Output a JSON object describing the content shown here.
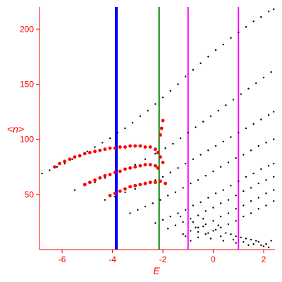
{
  "chart_data": {
    "type": "scatter",
    "title": "",
    "xlabel": "E",
    "ylabel": "<n>",
    "xlim": [
      -6.9,
      2.45
    ],
    "ylim": [
      0,
      220
    ],
    "x_ticks": [
      -6,
      -4,
      -2,
      0,
      2
    ],
    "x_tick_labels": [
      "-6",
      "-4",
      "-2",
      "0",
      "2"
    ],
    "y_ticks": [
      50,
      100,
      150,
      200
    ],
    "y_tick_labels": [
      "50",
      "100",
      "150",
      "200"
    ],
    "grid": false,
    "colors": {
      "axes": "#ff0000",
      "points": "#000000",
      "highlight_points": "#ff0000",
      "line_blue": "#0000ff",
      "line_green": "#008000",
      "line_magenta": "#ff00ff"
    },
    "vertical_lines": [
      {
        "x": -3.85,
        "color": "#0000ff"
      },
      {
        "x": -2.15,
        "color": "#008000"
      },
      {
        "x": -1.0,
        "color": "#ff00ff"
      },
      {
        "x": 1.0,
        "color": "#ff00ff"
      }
    ],
    "series": [
      {
        "color": "#000000",
        "x": [
          -6.8,
          -6.5,
          -6.2,
          -5.9,
          -5.6,
          -5.3,
          -5.0,
          -4.7,
          -4.4,
          -4.1,
          -3.8,
          -3.5,
          -3.2,
          -2.9,
          -2.6,
          -2.3,
          -2.0,
          -1.7,
          -1.4,
          -1.1,
          -0.8,
          -0.5,
          -0.2,
          0.1,
          0.4,
          0.7,
          1.0,
          1.3,
          1.6,
          1.9,
          2.2,
          2.4,
          -5.5,
          -5.1,
          -4.7,
          -4.3,
          -3.9,
          -3.5,
          -3.1,
          -2.7,
          -2.3,
          -1.9,
          -1.6,
          -1.3,
          -1.0,
          -0.7,
          -0.4,
          -0.1,
          0.2,
          0.5,
          0.8,
          1.1,
          1.4,
          1.7,
          2.0,
          2.3,
          -4.3,
          -3.9,
          -3.5,
          -3.1,
          -2.7,
          -2.3,
          -2.0,
          -1.7,
          -1.4,
          -1.1,
          -0.8,
          -0.5,
          -0.2,
          0.1,
          0.4,
          0.7,
          1.0,
          1.3,
          1.6,
          1.9,
          2.2,
          2.4,
          -3.3,
          -3.0,
          -2.7,
          -2.4,
          -2.1,
          -1.8,
          -1.5,
          -1.2,
          -0.9,
          -0.6,
          -0.3,
          0.0,
          0.3,
          0.6,
          0.9,
          1.2,
          1.5,
          1.8,
          2.1,
          2.4,
          -2.3,
          -2.0,
          -1.7,
          -1.4,
          -1.1,
          -0.8,
          -0.5,
          -0.2,
          0.1,
          0.4,
          0.7,
          1.0,
          1.3,
          1.6,
          1.9,
          2.2,
          2.4,
          -1.8,
          -1.5,
          -1.2,
          -0.9,
          -0.6,
          -0.3,
          0.0,
          0.3,
          0.6,
          0.9,
          1.2,
          1.5,
          1.8,
          2.1,
          2.4,
          -1.2,
          -0.9,
          -0.6,
          -0.3,
          0.0,
          0.3,
          0.6,
          0.9,
          1.2,
          1.5,
          1.8,
          2.1,
          2.4,
          -0.9,
          -0.6,
          -0.3,
          0.0,
          0.3,
          0.6,
          0.9,
          1.2,
          1.5,
          1.8,
          2.1,
          2.4,
          -1.3,
          -0.8,
          -0.4,
          0.1,
          0.5,
          0.9,
          1.3,
          1.7,
          2.1,
          -0.7,
          -0.2,
          0.3,
          0.8,
          1.2,
          1.6,
          2.0,
          2.3,
          -1.1,
          -0.6,
          -0.1,
          0.4,
          0.9,
          1.4,
          1.9,
          2.2,
          -0.4,
          0.2,
          0.7,
          1.1,
          1.5,
          1.8,
          2.1
        ],
        "y": [
          69,
          72,
          75,
          78,
          82,
          86,
          89,
          93,
          97,
          101,
          106,
          110,
          115,
          121,
          126,
          132,
          138,
          144,
          150,
          157,
          163,
          169,
          175,
          181,
          186,
          192,
          197,
          202,
          207,
          211,
          216,
          218,
          54,
          58,
          61,
          65,
          69,
          73,
          77,
          82,
          87,
          92,
          96,
          101,
          106,
          111,
          116,
          121,
          126,
          131,
          136,
          141,
          146,
          151,
          156,
          161,
          45,
          48,
          52,
          55,
          59,
          63,
          66,
          70,
          74,
          78,
          82,
          86,
          90,
          94,
          98,
          102,
          106,
          110,
          114,
          118,
          122,
          125,
          33,
          36,
          39,
          42,
          45,
          49,
          52,
          56,
          60,
          63,
          67,
          71,
          75,
          79,
          83,
          86,
          90,
          94,
          97,
          100,
          24,
          27,
          30,
          33,
          36,
          40,
          43,
          47,
          51,
          54,
          58,
          62,
          66,
          69,
          73,
          76,
          78,
          19,
          22,
          25,
          28,
          31,
          35,
          38,
          42,
          45,
          49,
          53,
          56,
          60,
          63,
          66,
          14,
          17,
          20,
          23,
          26,
          30,
          33,
          37,
          40,
          44,
          47,
          51,
          54,
          8,
          11,
          14,
          17,
          20,
          23,
          26,
          30,
          33,
          37,
          40,
          44,
          30,
          25,
          21,
          18,
          15,
          12,
          10,
          8,
          5,
          20,
          15,
          12,
          9,
          7,
          5,
          3,
          8,
          12,
          16,
          10,
          8,
          6,
          4,
          4,
          2,
          28,
          22,
          14,
          11,
          9,
          7,
          5
        ]
      },
      {
        "color": "#ff0000",
        "x": [
          -6.3,
          -6.1,
          -5.9,
          -5.7,
          -5.5,
          -5.3,
          -5.1,
          -4.9,
          -4.7,
          -4.5,
          -4.3,
          -4.1,
          -3.9,
          -3.7,
          -3.5,
          -3.3,
          -3.1,
          -2.9,
          -2.7,
          -2.5,
          -2.3,
          -2.2,
          -2.1,
          -2.0,
          -5.1,
          -4.9,
          -4.7,
          -4.5,
          -4.3,
          -4.1,
          -3.9,
          -3.7,
          -3.5,
          -3.3,
          -3.1,
          -2.9,
          -2.7,
          -2.5,
          -2.3,
          -2.2,
          -4.1,
          -3.9,
          -3.7,
          -3.5,
          -3.3,
          -3.1,
          -2.9,
          -2.7,
          -2.5,
          -2.3,
          -2.1,
          -1.9,
          -2.1,
          -2.05,
          -2.0
        ],
        "y": [
          75,
          78,
          80,
          82,
          84,
          85,
          87,
          88,
          89,
          90,
          91,
          92,
          92,
          93,
          93,
          94,
          94,
          94,
          93,
          93,
          91,
          88,
          84,
          79,
          59,
          61,
          63,
          65,
          67,
          68,
          70,
          71,
          73,
          74,
          75,
          76,
          77,
          77,
          76,
          74,
          49,
          51,
          53,
          55,
          57,
          58,
          59,
          60,
          61,
          61,
          62,
          60,
          104,
          110,
          117
        ]
      }
    ]
  }
}
